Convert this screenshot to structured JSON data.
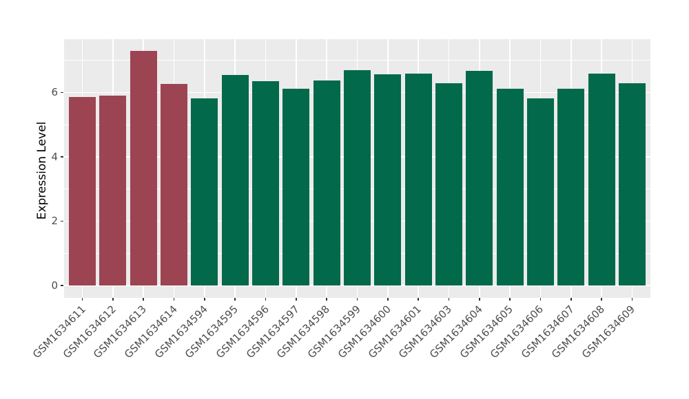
{
  "figure": {
    "background_color": "#FFFFFF",
    "panel_background_color": "#EBEBEB",
    "gridline_color": "#FFFFFF",
    "axis_text_color": "#4D4D4D",
    "axis_title_color": "#000000",
    "tick_mark_color": "#333333"
  },
  "chart_data": {
    "type": "bar",
    "title": "",
    "xlabel": "",
    "ylabel": "Expression Level",
    "legend": "none",
    "grid": "on",
    "orientation": "vertical",
    "categories": [
      "GSM1634611",
      "GSM1634612",
      "GSM1634613",
      "GSM1634614",
      "GSM1634594",
      "GSM1634595",
      "GSM1634596",
      "GSM1634597",
      "GSM1634598",
      "GSM1634599",
      "GSM1634600",
      "GSM1634601",
      "GSM1634603",
      "GSM1634604",
      "GSM1634605",
      "GSM1634606",
      "GSM1634607",
      "GSM1634608",
      "GSM1634609"
    ],
    "values": [
      5.86,
      5.9,
      7.29,
      6.27,
      5.82,
      6.54,
      6.35,
      6.12,
      6.37,
      6.7,
      6.57,
      6.59,
      6.29,
      6.67,
      6.12,
      5.82,
      6.12,
      6.59,
      6.29
    ],
    "bar_colors": [
      "#9C4452",
      "#9C4452",
      "#9C4452",
      "#9C4452",
      "#02694A",
      "#02694A",
      "#02694A",
      "#02694A",
      "#02694A",
      "#02694A",
      "#02694A",
      "#02694A",
      "#02694A",
      "#02694A",
      "#02694A",
      "#02694A",
      "#02694A",
      "#02694A",
      "#02694A"
    ],
    "group_colors": {
      "highlight_group": "#9C4452",
      "other_group": "#02694A"
    },
    "yticks": [
      0,
      2,
      4,
      6
    ],
    "yticks_minor": [
      1,
      3,
      5,
      7
    ],
    "ylim": [
      -0.37,
      7.67
    ],
    "x_tick_label_angle": 45
  }
}
